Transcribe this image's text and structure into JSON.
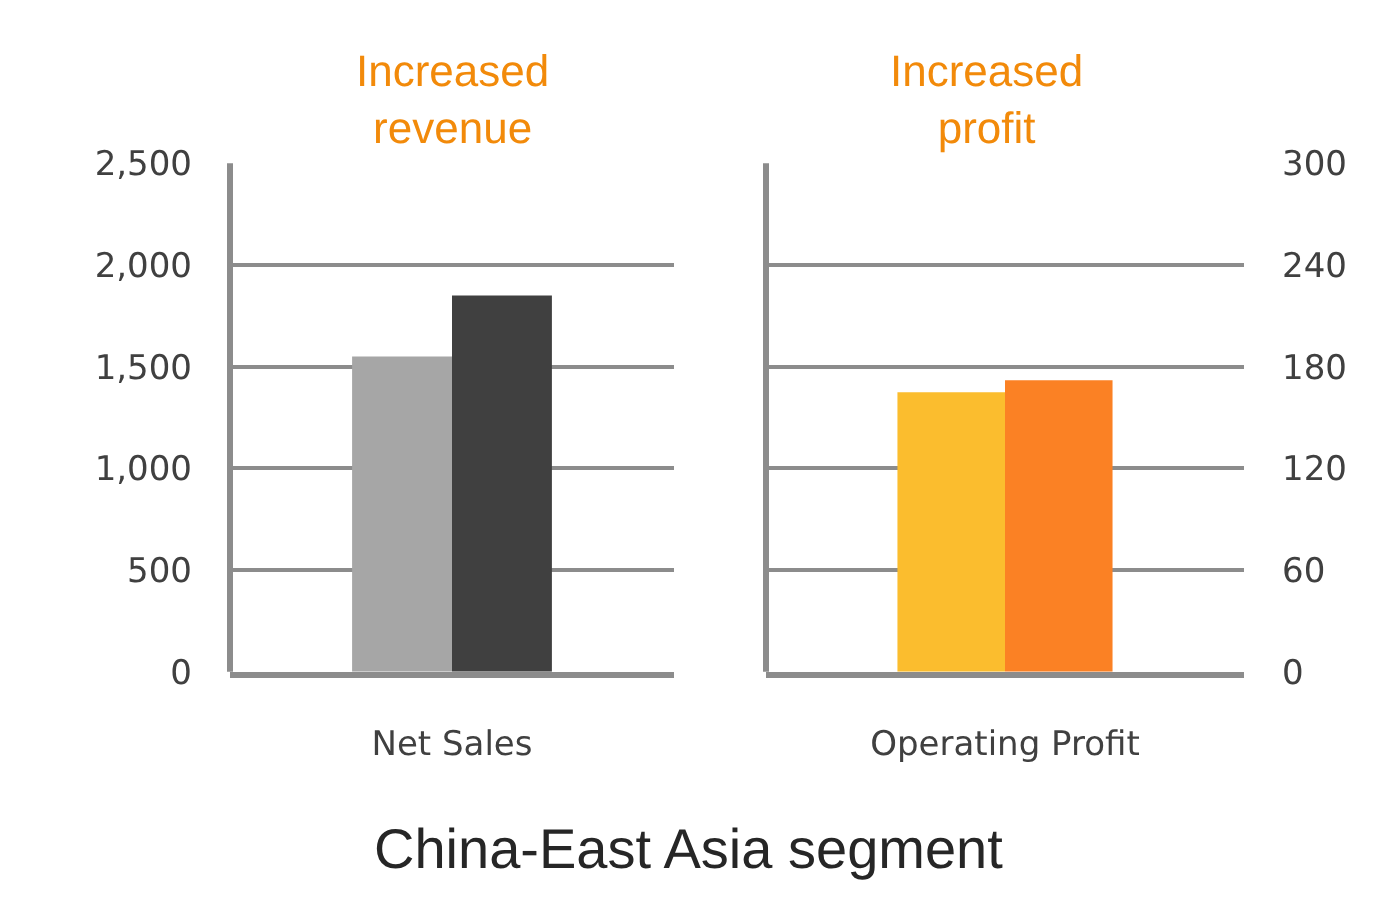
{
  "chart_data": [
    {
      "type": "bar",
      "title": "China-East Asia segment",
      "annotations": [
        "Increased\nrevenue"
      ],
      "categories": [
        "Net Sales"
      ],
      "series": [
        {
          "color": "#a6a6a6",
          "values": [
            1550
          ]
        },
        {
          "color": "#404040",
          "values": [
            1850
          ]
        }
      ],
      "ylim": [
        0,
        2500
      ],
      "yticks": [
        0,
        {
          "value": 500,
          "label": "500"
        },
        {
          "value": 1000,
          "label": "1,000"
        },
        {
          "value": 1500,
          "label": "1,500"
        },
        {
          "value": 2000,
          "label": "2,000"
        },
        {
          "value": 2500,
          "label": "2,500"
        }
      ],
      "grid": "y",
      "legend": false
    },
    {
      "type": "bar",
      "annotations": [
        "Increased\nprofit"
      ],
      "categories": [
        "Operating Profit"
      ],
      "series": [
        {
          "color": "#fbbd2e",
          "values": [
            165
          ],
          "axis": "y2"
        },
        {
          "color": "#fb8124",
          "values": [
            172
          ],
          "axis": "y2"
        }
      ],
      "y2lim": [
        0,
        300
      ],
      "y2ticks": [
        0,
        60,
        120,
        180,
        240,
        300
      ],
      "grid": "y",
      "legend": false
    }
  ]
}
